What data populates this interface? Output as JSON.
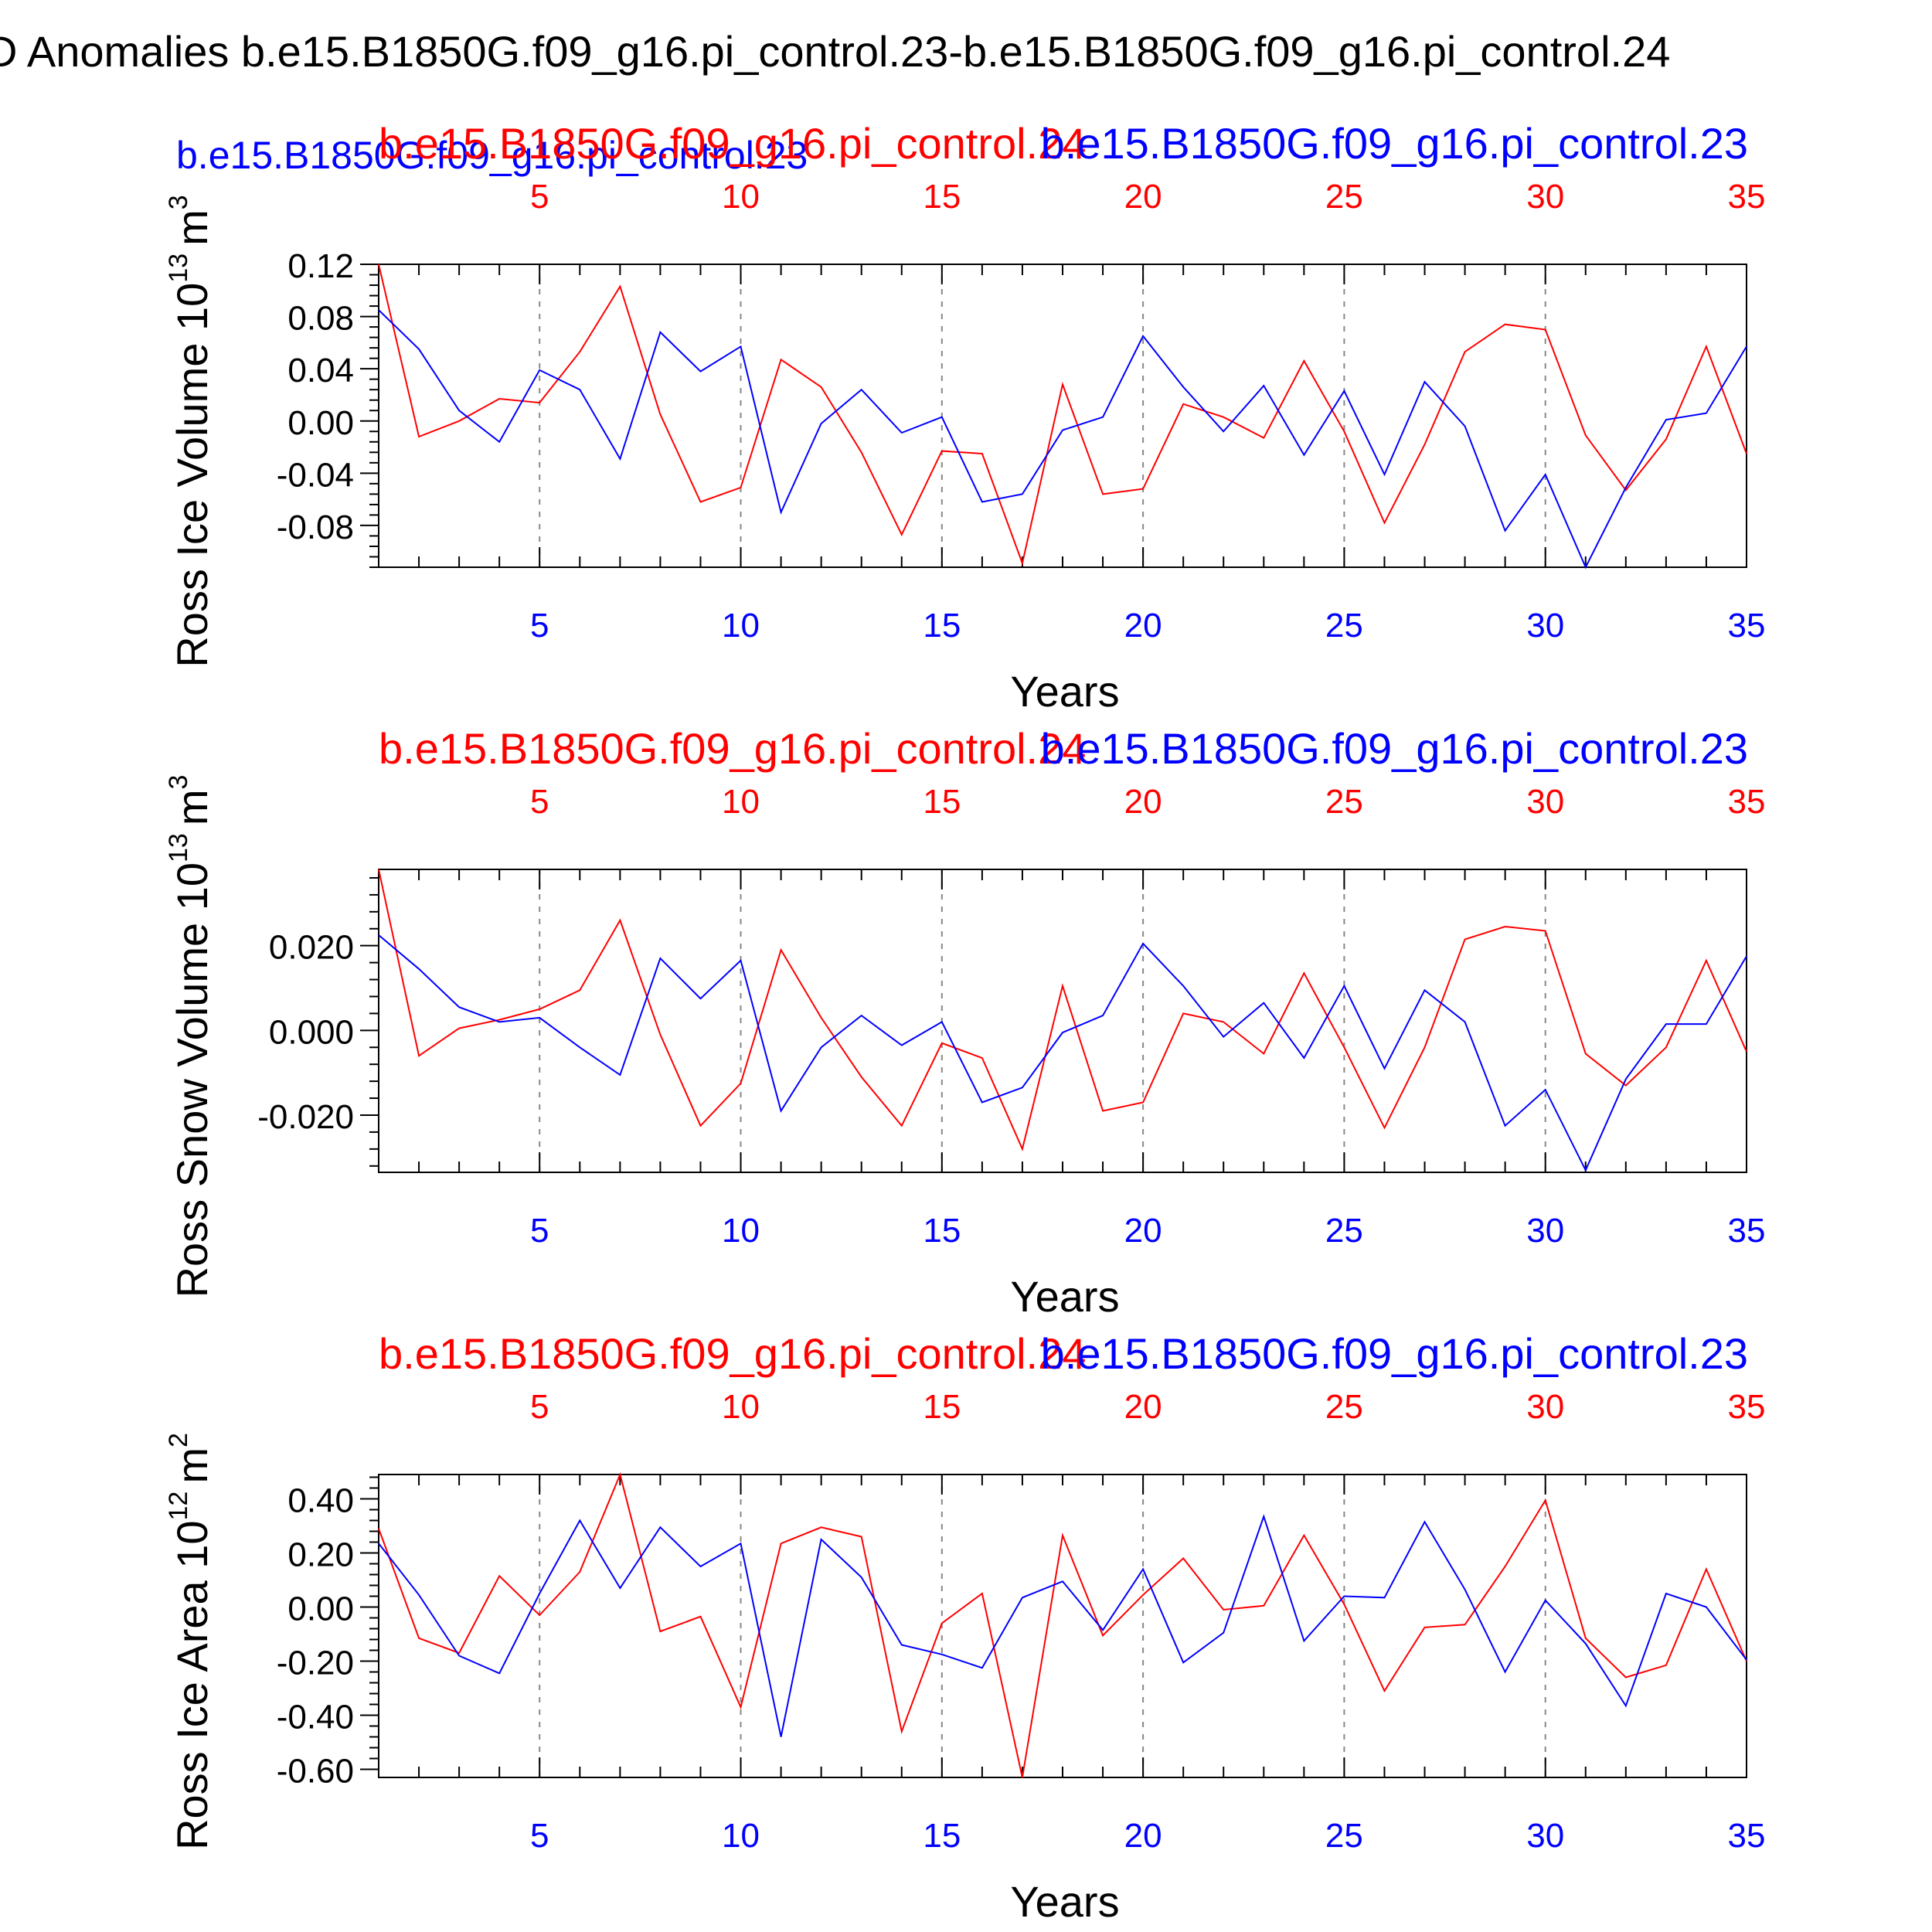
{
  "title": "D Anomalies b.e15.B1850G.f09_g16.pi_control.23-b.e15.B1850G.f09_g16.pi_control.24",
  "colors": {
    "red": "#ff0000",
    "blue": "#0000ff",
    "axis": "#000000",
    "grid": "#888888"
  },
  "top_stray_label": "b.e15.B1850G.f09_g16.pi_control.23",
  "chart_data": [
    {
      "type": "line",
      "ylabel": "Ross Ice Volume 10",
      "ylabel_exp": "13",
      "ylabel_unit": "m",
      "ylabel_unit_exp": "3",
      "xlabel": "Years",
      "red_title": "b.e15.B1850G.f09_g16.pi_control.24",
      "blue_title": "b.e15.B1850G.f09_g16.pi_control.23",
      "xlim": [
        1,
        35
      ],
      "xticks": [
        5,
        10,
        15,
        20,
        25,
        30,
        35
      ],
      "ylim": [
        -0.112,
        0.12
      ],
      "yticks": [
        0.12,
        0.08,
        0.04,
        0.0,
        -0.04,
        -0.08
      ],
      "ytick_labels": [
        "0.12",
        "0.08",
        "0.04",
        "0.00",
        "-0.04",
        "-0.08"
      ],
      "series": [
        {
          "color": "red",
          "values": [
            0.12,
            -0.012,
            0.0,
            0.017,
            0.014,
            0.053,
            0.103,
            0.005,
            -0.062,
            -0.051,
            0.047,
            0.026,
            -0.024,
            -0.087,
            -0.023,
            -0.025,
            -0.109,
            0.028,
            -0.056,
            -0.052,
            0.013,
            0.003,
            -0.013,
            0.046,
            -0.008,
            -0.078,
            -0.018,
            0.053,
            0.074,
            0.07,
            -0.011,
            -0.053,
            -0.014,
            0.057,
            -0.025
          ]
        },
        {
          "color": "blue",
          "values": [
            0.085,
            0.055,
            0.008,
            -0.016,
            0.039,
            0.024,
            -0.029,
            0.068,
            0.038,
            0.057,
            -0.07,
            -0.002,
            0.024,
            -0.009,
            0.003,
            -0.062,
            -0.056,
            -0.007,
            0.003,
            0.065,
            0.026,
            -0.008,
            0.027,
            -0.026,
            0.023,
            -0.041,
            0.03,
            -0.004,
            -0.084,
            -0.041,
            -0.112,
            -0.051,
            0.001,
            0.006,
            0.057
          ]
        }
      ]
    },
    {
      "type": "line",
      "ylabel": "Ross Snow Volume 10",
      "ylabel_exp": "13",
      "ylabel_unit": "m",
      "ylabel_unit_exp": "3",
      "xlabel": "Years",
      "red_title": "b.e15.B1850G.f09_g16.pi_control.24",
      "blue_title": "b.e15.B1850G.f09_g16.pi_control.23",
      "xlim": [
        1,
        35
      ],
      "xticks": [
        5,
        10,
        15,
        20,
        25,
        30,
        35
      ],
      "ylim": [
        -0.0335,
        0.038
      ],
      "yticks": [
        0.02,
        0.0,
        -0.02
      ],
      "ytick_labels": [
        "0.020",
        "0.000",
        "-0.020"
      ],
      "series": [
        {
          "color": "red",
          "values": [
            0.038,
            -0.006,
            0.0005,
            0.0025,
            0.005,
            0.0095,
            0.026,
            -0.001,
            -0.0225,
            -0.0125,
            0.019,
            0.003,
            -0.011,
            -0.0225,
            -0.003,
            -0.0065,
            -0.028,
            0.0105,
            -0.019,
            -0.017,
            0.004,
            0.002,
            -0.0055,
            0.0135,
            -0.004,
            -0.023,
            -0.004,
            0.0215,
            0.0245,
            0.0235,
            -0.0055,
            -0.013,
            -0.004,
            0.0165,
            -0.005
          ]
        },
        {
          "color": "blue",
          "values": [
            0.0225,
            0.0145,
            0.0055,
            0.002,
            0.003,
            -0.004,
            -0.0105,
            0.017,
            0.0075,
            0.0165,
            -0.019,
            -0.004,
            0.0035,
            -0.0035,
            0.002,
            -0.017,
            -0.0135,
            -0.0005,
            0.0035,
            0.0205,
            0.0105,
            -0.0015,
            0.0065,
            -0.0065,
            0.0105,
            -0.009,
            0.0095,
            0.002,
            -0.0225,
            -0.014,
            -0.033,
            -0.0115,
            0.0015,
            0.0015,
            0.0175
          ]
        }
      ]
    },
    {
      "type": "line",
      "ylabel": "Ross Ice Area 10",
      "ylabel_exp": "12",
      "ylabel_unit": "m",
      "ylabel_unit_exp": "2",
      "xlabel": "Years",
      "red_title": "b.e15.B1850G.f09_g16.pi_control.24",
      "blue_title": "b.e15.B1850G.f09_g16.pi_control.23",
      "xlim": [
        1,
        35
      ],
      "xticks": [
        5,
        10,
        15,
        20,
        25,
        30,
        35
      ],
      "ylim": [
        -0.63,
        0.49
      ],
      "yticks": [
        0.4,
        0.2,
        0.0,
        -0.2,
        -0.4,
        -0.6
      ],
      "ytick_labels": [
        "0.40",
        "0.20",
        "0.00",
        "-0.20",
        "-0.40",
        "-0.60"
      ],
      "series": [
        {
          "color": "red",
          "values": [
            0.29,
            -0.115,
            -0.17,
            0.115,
            -0.03,
            0.13,
            0.49,
            -0.09,
            -0.035,
            -0.37,
            0.235,
            0.295,
            0.26,
            -0.46,
            -0.06,
            0.05,
            -0.63,
            0.265,
            -0.105,
            0.045,
            0.18,
            -0.01,
            0.005,
            0.265,
            0.01,
            -0.31,
            -0.075,
            -0.065,
            0.15,
            0.395,
            -0.115,
            -0.26,
            -0.215,
            0.14,
            -0.2
          ]
        },
        {
          "color": "blue",
          "values": [
            0.235,
            0.045,
            -0.18,
            -0.245,
            0.05,
            0.32,
            0.07,
            0.295,
            0.15,
            0.235,
            -0.48,
            0.25,
            0.11,
            -0.14,
            -0.175,
            -0.225,
            0.035,
            0.095,
            -0.085,
            0.14,
            -0.205,
            -0.095,
            0.335,
            -0.125,
            0.04,
            0.035,
            0.315,
            0.065,
            -0.24,
            0.025,
            -0.135,
            -0.365,
            0.05,
            0.0,
            -0.195
          ]
        }
      ]
    }
  ]
}
